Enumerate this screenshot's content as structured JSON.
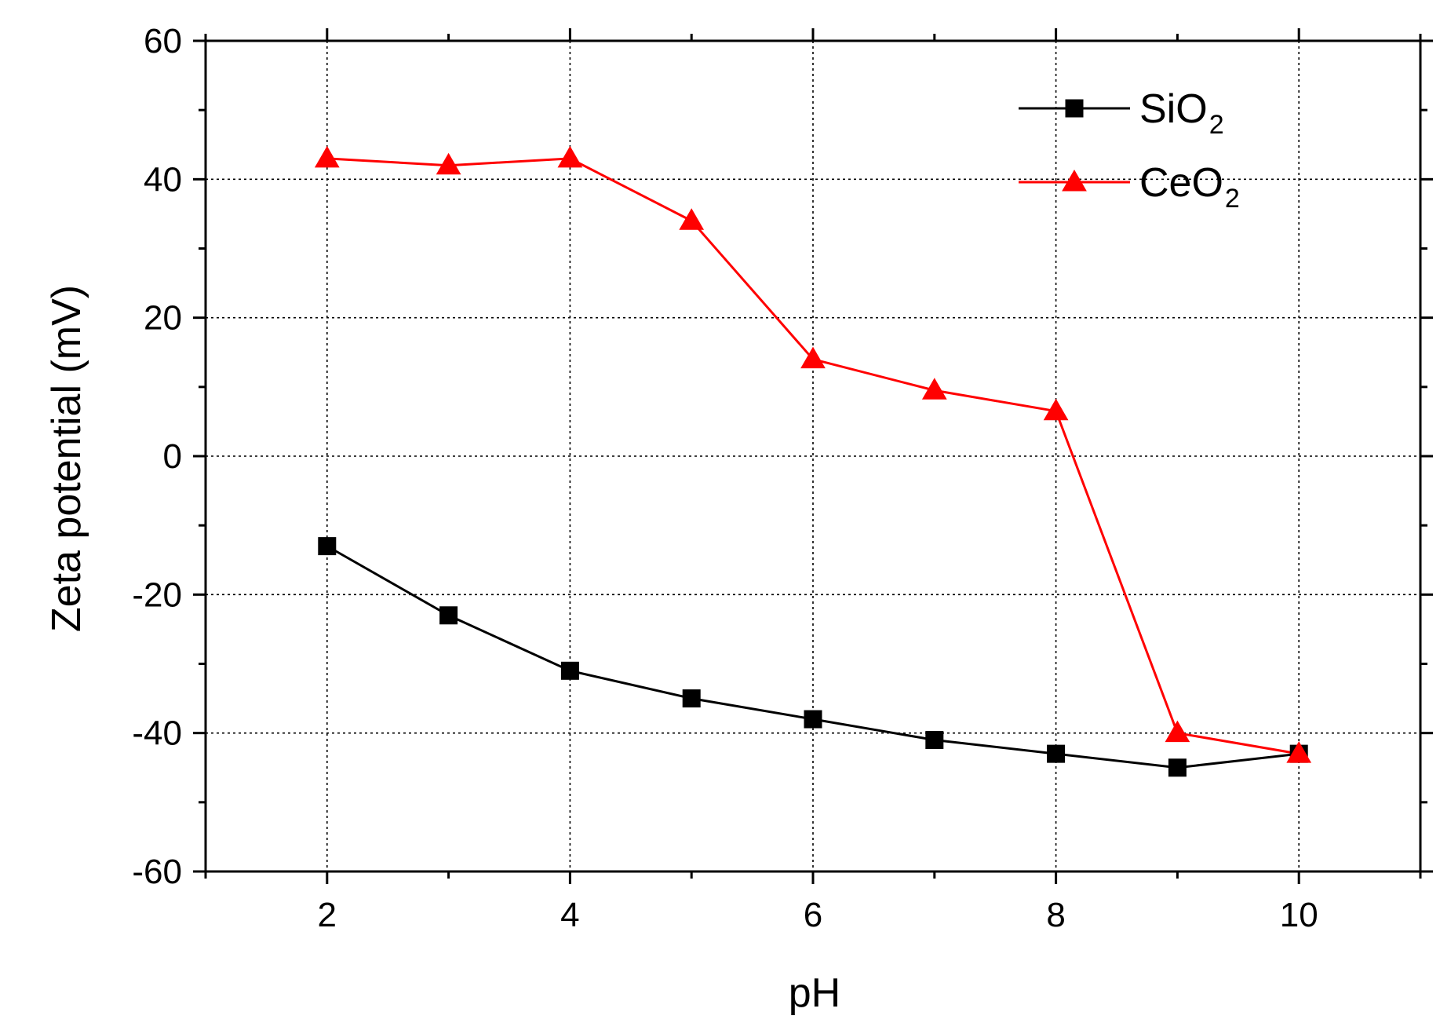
{
  "chart_data": {
    "type": "line",
    "xlabel": "pH",
    "ylabel": "Zeta potential (mV)",
    "xlim": [
      1,
      11
    ],
    "ylim": [
      -60,
      60
    ],
    "x_ticks": [
      2,
      4,
      6,
      8,
      10
    ],
    "x_tick_labels": [
      "2",
      "4",
      "6",
      "8",
      "10"
    ],
    "y_ticks": [
      -60,
      -40,
      -20,
      0,
      20,
      40,
      60
    ],
    "y_tick_labels": [
      "-60",
      "-40",
      "-20",
      "0",
      "20",
      "40",
      "60"
    ],
    "grid": true,
    "legend_position": "top-right",
    "series": [
      {
        "name": "SiO2",
        "legend_main": "SiO",
        "legend_sub": "2",
        "color": "#000000",
        "marker": "square",
        "x": [
          2,
          3,
          4,
          5,
          6,
          7,
          8,
          9,
          10
        ],
        "y": [
          -13,
          -23,
          -31,
          -35,
          -38,
          -41,
          -43,
          -45,
          -43
        ]
      },
      {
        "name": "CeO2",
        "legend_main": "CeO",
        "legend_sub": "2",
        "color": "#ff0000",
        "marker": "triangle",
        "x": [
          2,
          3,
          4,
          5,
          6,
          7,
          8,
          9,
          10
        ],
        "y": [
          43,
          42,
          43,
          34,
          14,
          9.5,
          6.5,
          -40,
          -43
        ]
      }
    ]
  }
}
